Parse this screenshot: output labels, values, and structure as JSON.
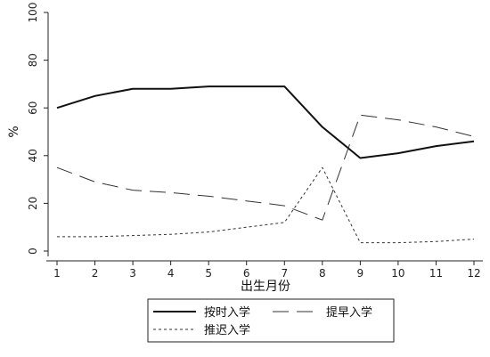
{
  "chart_data": {
    "type": "line",
    "title": "",
    "xlabel": "出生月份",
    "ylabel": "%",
    "x": [
      1,
      2,
      3,
      4,
      5,
      6,
      7,
      8,
      9,
      10,
      11,
      12
    ],
    "xlim": [
      1,
      12
    ],
    "ylim": [
      0,
      100
    ],
    "yticks": [
      0,
      20,
      40,
      60,
      80,
      100
    ],
    "grid": false,
    "legend_position": "bottom",
    "series": [
      {
        "name": "按时入学",
        "style": "solid",
        "color": "#111111",
        "values": [
          60,
          65,
          68,
          68,
          69,
          69,
          69,
          52,
          39,
          41,
          44,
          46
        ]
      },
      {
        "name": "提早入学",
        "style": "long-dash",
        "color": "#333333",
        "values": [
          35,
          29,
          25.5,
          24.5,
          23,
          21,
          19,
          13,
          57,
          55,
          52,
          48
        ]
      },
      {
        "name": "推迟入学",
        "style": "dotted",
        "color": "#333333",
        "values": [
          6,
          6,
          6.5,
          7,
          8,
          10,
          12,
          35,
          3.5,
          3.5,
          4,
          5
        ]
      }
    ]
  }
}
